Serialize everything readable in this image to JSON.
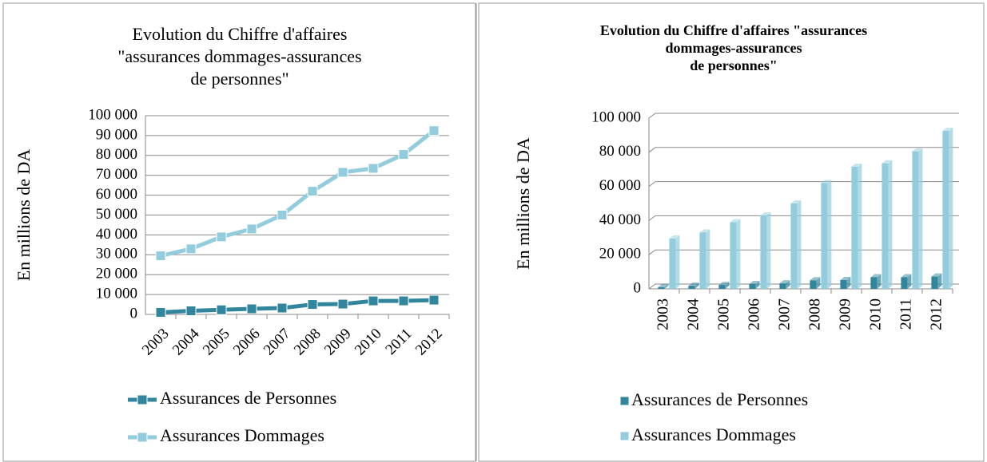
{
  "chart_data": [
    {
      "type": "line",
      "title": [
        "Evolution du Chiffre d'affaires",
        "\"assurances dommages-assurances",
        "de personnes\""
      ],
      "ylabel": "En millions de DA",
      "categories": [
        "2003",
        "2004",
        "2005",
        "2006",
        "2007",
        "2008",
        "2009",
        "2010",
        "2011",
        "2012"
      ],
      "series": [
        {
          "name": "Assurances de Personnes",
          "color": "#31859c",
          "values": [
            1000,
            1800,
            2300,
            2800,
            3200,
            5000,
            5200,
            6800,
            6800,
            7200
          ]
        },
        {
          "name": "Assurances  Dommages",
          "color": "#93cddd",
          "values": [
            29500,
            33000,
            39000,
            43000,
            50000,
            62000,
            71500,
            73500,
            80500,
            92500
          ]
        }
      ],
      "ylim": [
        0,
        100000
      ],
      "yticks": [
        0,
        {
          "value": 10000,
          "label": "10 000"
        },
        {
          "value": 20000,
          "label": "20 000"
        },
        {
          "value": 30000,
          "label": "30 000"
        },
        {
          "value": 40000,
          "label": "40 000"
        },
        {
          "value": 50000,
          "label": "50 000"
        },
        {
          "value": 60000,
          "label": "60 000"
        },
        {
          "value": 70000,
          "label": "70 000"
        },
        {
          "value": 80000,
          "label": "80 000"
        },
        {
          "value": 90000,
          "label": "90 000"
        },
        {
          "value": 100000,
          "label": "100 000"
        }
      ],
      "grid": true,
      "legend": "bottom"
    },
    {
      "type": "bar",
      "title": [
        "Evolution du Chiffre d'affaires \"assurances",
        "dommages-assurances",
        "de personnes\""
      ],
      "ylabel": "En millions de DA",
      "categories": [
        "2003",
        "2004",
        "2005",
        "2006",
        "2007",
        "2008",
        "2009",
        "2010",
        "2011",
        "2012"
      ],
      "series": [
        {
          "name": "Assurances de Personnes",
          "color": "#31859c",
          "values": [
            1000,
            1800,
            2300,
            2800,
            3200,
            5000,
            5200,
            6800,
            6800,
            7200
          ]
        },
        {
          "name": "Assurances  Dommages",
          "color": "#93cddd",
          "values": [
            29500,
            33000,
            39000,
            43000,
            50000,
            62000,
            71500,
            73500,
            80500,
            92500
          ]
        }
      ],
      "ylim": [
        0,
        100000
      ],
      "yticks": [
        0,
        {
          "value": 20000,
          "label": "20 000"
        },
        {
          "value": 40000,
          "label": "40 000"
        },
        {
          "value": 60000,
          "label": "60 000"
        },
        {
          "value": 80000,
          "label": "80 000"
        },
        {
          "value": 100000,
          "label": "100 000"
        }
      ],
      "grid": true,
      "legend": "bottom"
    }
  ]
}
